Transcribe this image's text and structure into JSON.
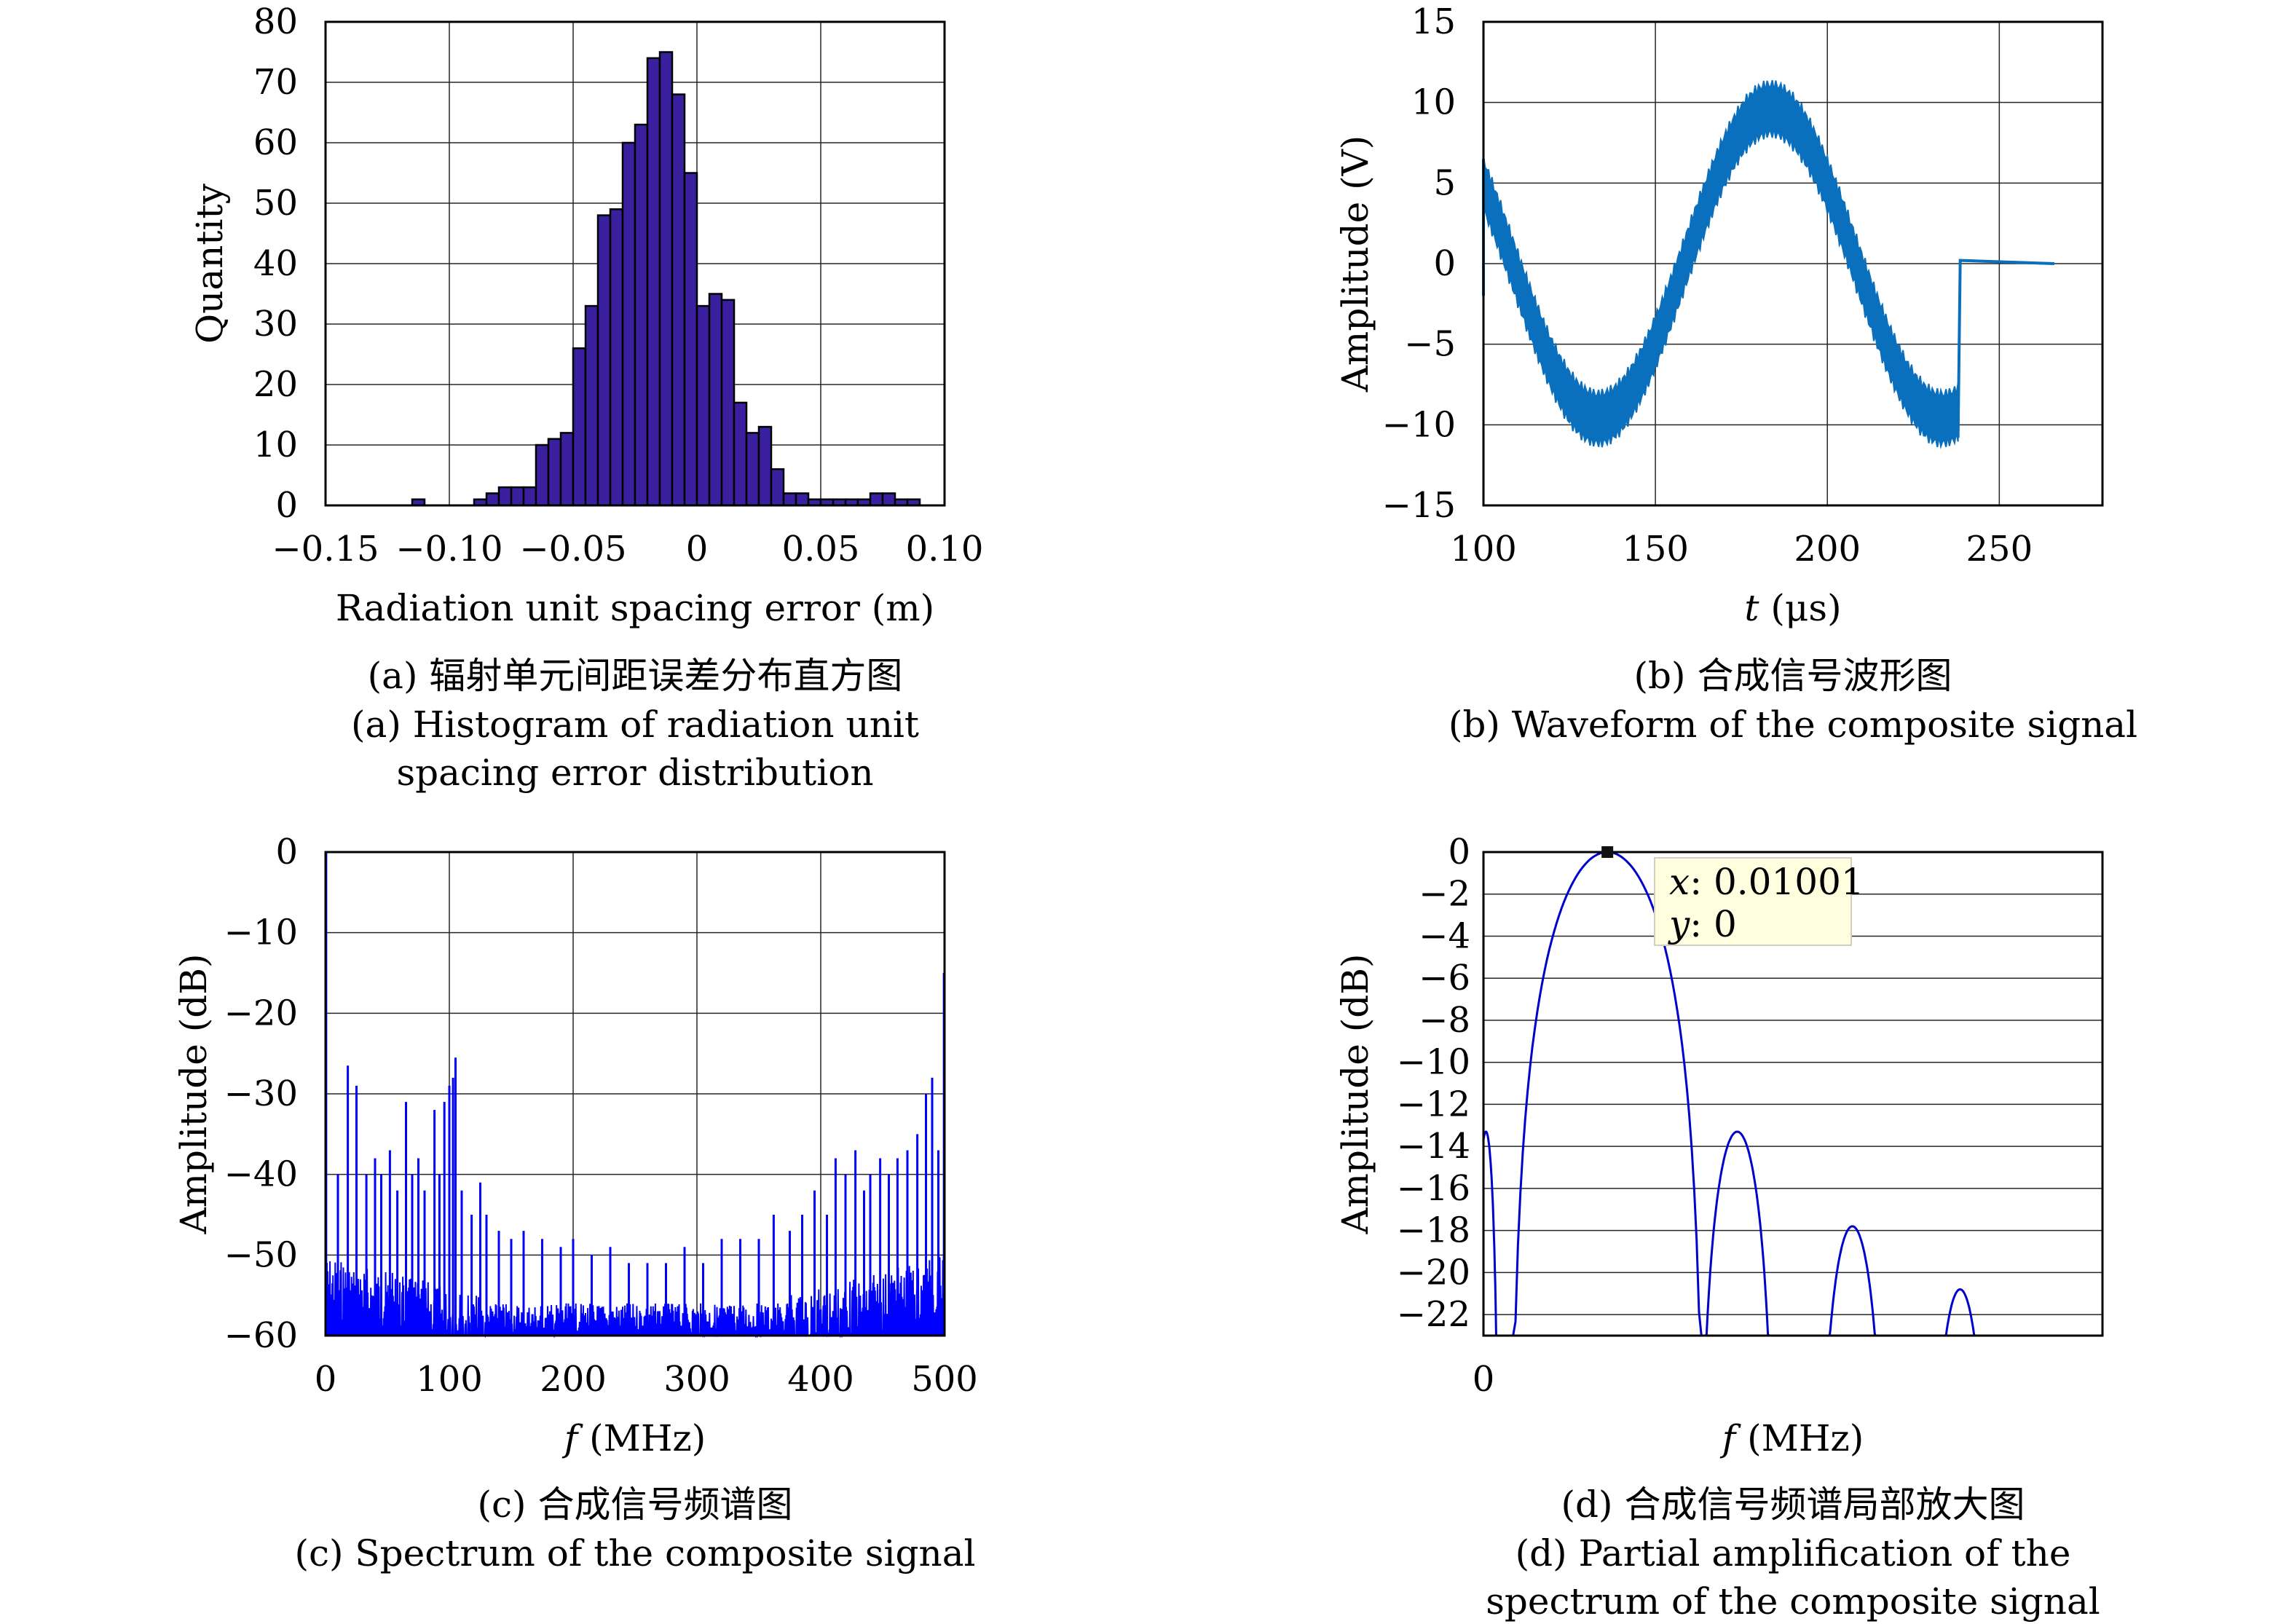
{
  "chart_data": [
    {
      "id": "a",
      "type": "bar",
      "ylabel": "Quantity",
      "xlabel": "Radiation unit spacing error (m)",
      "xlim": [
        -0.15,
        0.1
      ],
      "ylim": [
        0,
        80
      ],
      "xticks": [
        "−0.15",
        "−0.10",
        "−0.05",
        "0",
        "0.05",
        "0.10"
      ],
      "yticks": [
        "0",
        "10",
        "20",
        "30",
        "40",
        "50",
        "60",
        "70",
        "80"
      ],
      "bin_width": 0.005,
      "bin_starts": [
        -0.115,
        -0.095,
        -0.09,
        -0.085,
        -0.08,
        -0.075,
        -0.07,
        -0.065,
        -0.06,
        -0.055,
        -0.05,
        -0.045,
        -0.04,
        -0.035,
        -0.03,
        -0.025,
        -0.02,
        -0.015,
        -0.01,
        -0.005,
        0.0,
        0.005,
        0.01,
        0.015,
        0.02,
        0.025,
        0.03,
        0.035,
        0.04,
        0.045,
        0.05,
        0.055,
        0.06,
        0.065,
        0.07,
        0.075,
        0.08,
        0.085
      ],
      "values": [
        1,
        0,
        1,
        2,
        3,
        3,
        3,
        10,
        11,
        12,
        26,
        33,
        48,
        49,
        60,
        63,
        74,
        75,
        68,
        55,
        33,
        35,
        34,
        17,
        12,
        13,
        6,
        2,
        2,
        1,
        1,
        1,
        1,
        1,
        2,
        2,
        1,
        1
      ],
      "grid": true,
      "bar_color": "#3a1f9e",
      "caption_cn": "(a) 辐射单元间距误差分布直方图",
      "caption_en": [
        "(a) Histogram of radiation unit",
        "spacing error distribution"
      ]
    },
    {
      "id": "b",
      "type": "line",
      "ylabel": "Amplitude (V)",
      "xlabel_italic": "t",
      "xlabel_rest": " (μs)",
      "xlim": [
        100,
        280
      ],
      "ylim": [
        -15,
        15
      ],
      "xticks": [
        "100",
        "150",
        "200",
        "250"
      ],
      "yticks": [
        "−15",
        "−10",
        "−5",
        "0",
        "5",
        "10",
        "15"
      ],
      "x": [
        100,
        110,
        120,
        130,
        135,
        145,
        160,
        170,
        180,
        185,
        195,
        210,
        220,
        230,
        238,
        238.5,
        240,
        250,
        260,
        266
      ],
      "y": [
        3,
        -2,
        -6,
        -9,
        -9.3,
        -8,
        -2,
        3,
        8,
        8.5,
        6,
        -2,
        -6,
        -9,
        -9.4,
        0,
        0,
        0,
        0,
        0
      ],
      "band": 1.5,
      "grid": true,
      "line_color": "#0a6fbd",
      "caption_cn": "(b) 合成信号波形图",
      "caption_en": [
        "(b) Waveform of the composite signal"
      ]
    },
    {
      "id": "c",
      "type": "line",
      "ylabel": "Amplitude (dB)",
      "xlabel_italic": "f",
      "xlabel_rest": " (MHz)",
      "xlim": [
        0,
        500
      ],
      "ylim": [
        -60,
        0
      ],
      "xticks": [
        "0",
        "100",
        "200",
        "300",
        "400",
        "500"
      ],
      "yticks": [
        "−60",
        "−50",
        "−40",
        "−30",
        "−20",
        "−10",
        "0"
      ],
      "peaks_x": [
        10,
        18,
        25,
        33,
        40,
        45,
        52,
        58,
        65,
        70,
        75,
        80,
        88,
        92,
        96,
        100,
        103,
        105,
        110,
        118,
        125,
        130,
        140,
        150,
        160,
        175,
        190,
        200,
        215,
        230,
        245,
        260,
        275,
        290,
        305,
        320,
        335,
        350,
        362,
        375,
        385,
        395,
        405,
        412,
        420,
        428,
        435,
        440,
        448,
        455,
        462,
        470,
        478,
        485,
        490,
        495
      ],
      "peaks_y": [
        -40,
        -26.5,
        -29,
        -40,
        -38,
        -40,
        -37,
        -42,
        -31,
        -40,
        -38,
        -42,
        -32,
        -40,
        -31,
        -29,
        -28,
        -25.5,
        -42,
        -45,
        -41,
        -45,
        -47,
        -48,
        -47,
        -48,
        -49,
        -48,
        -50,
        -49,
        -51,
        -51,
        -51,
        -49,
        -51,
        -48,
        -48,
        -48,
        -45,
        -47,
        -45,
        -42,
        -45,
        -38,
        -40,
        -37,
        -42,
        -40,
        -38,
        -40,
        -38,
        -37,
        -35,
        -30,
        -28,
        -37
      ],
      "grid": true,
      "line_color": "#0000ff",
      "caption_cn": "(c) 合成信号频谱图",
      "caption_en": [
        "(c) Spectrum of the composite signal"
      ]
    },
    {
      "id": "d",
      "type": "line",
      "ylabel": "Amplitude (dB)",
      "xlabel_italic": "f",
      "xlabel_rest": " (MHz)",
      "xlim": [
        0,
        0.05
      ],
      "ylim": [
        -23,
        0
      ],
      "xticks": [
        "0"
      ],
      "yticks": [
        "0",
        "−2",
        "−4",
        "−6",
        "−8",
        "−10",
        "−12",
        "−14",
        "−16",
        "−18",
        "−20",
        "−22"
      ],
      "main_lobe_center": 0.01001,
      "sidelobes": [
        {
          "x": [
            0,
            0.002
          ],
          "peak": -13.3,
          "center": 0.0002
        },
        {
          "x": [
            0.0175,
            0.0235
          ],
          "peak": -13.3,
          "center": 0.0205
        },
        {
          "x": [
            0.027,
            0.0325
          ],
          "peak": -17.8,
          "center": 0.0298
        },
        {
          "x": [
            0.0365,
            0.0415
          ],
          "peak": -20.8,
          "center": 0.0385
        }
      ],
      "datatip": {
        "x_label": "x",
        "x_value": ": 0.01001",
        "y_label": "y",
        "y_value": ": 0"
      },
      "grid": true,
      "line_color": "#0000cc",
      "caption_cn": "(d) 合成信号频谱局部放大图",
      "caption_en": [
        "(d) Partial amplification of the",
        "spectrum of the composite signal"
      ]
    }
  ]
}
